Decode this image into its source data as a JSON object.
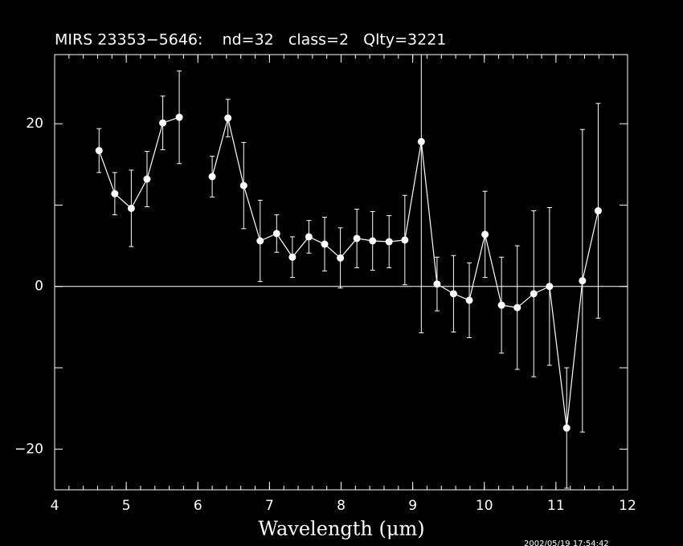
{
  "chart_data": {
    "type": "line",
    "title": "MIRS 23353−5646:    nd=32   class=2   Qlty=3221",
    "x_label": "Wavelength (μm)",
    "timestamp": "2002/05/19 17:54:42",
    "color": "#ffffff",
    "x": [
      4.62,
      4.84,
      5.07,
      5.29,
      5.51,
      5.74,
      5.97,
      6.2,
      6.42,
      6.64,
      6.87,
      7.1,
      7.32,
      7.55,
      7.77,
      7.99,
      8.22,
      8.44,
      8.67,
      8.89,
      9.12,
      9.34,
      9.57,
      9.79,
      10.01,
      10.24,
      10.46,
      10.69,
      10.91,
      11.15,
      11.37,
      11.59
    ],
    "values": [
      16.7,
      11.4,
      9.6,
      13.2,
      20.1,
      20.8,
      null,
      13.5,
      20.7,
      12.4,
      5.6,
      6.5,
      3.6,
      6.1,
      5.2,
      3.5,
      5.9,
      5.6,
      5.5,
      5.7,
      17.8,
      0.3,
      -0.9,
      -1.7,
      6.4,
      -2.3,
      -2.6,
      -0.9,
      0,
      -17.4,
      0.7,
      9.3
    ],
    "errors": [
      2.7,
      2.6,
      4.7,
      3.4,
      3.3,
      5.7,
      null,
      2.5,
      2.3,
      5.3,
      5.0,
      2.3,
      2.5,
      2.0,
      3.3,
      3.7,
      3.6,
      3.6,
      3.2,
      5.5,
      23.5,
      3.3,
      4.7,
      4.6,
      5.3,
      5.9,
      7.6,
      10.2,
      9.7,
      7.4,
      18.6,
      13.2
    ],
    "xlim": [
      4,
      12
    ],
    "xticks": [
      4,
      5,
      6,
      7,
      8,
      9,
      10,
      11,
      12
    ],
    "xminor_step": 0.2,
    "ylim": [
      -25,
      28.5
    ],
    "yticks": [
      {
        "value": -20,
        "label": "−20"
      },
      0,
      20
    ],
    "yminorticks": [
      -10,
      10
    ],
    "hline": 0
  }
}
